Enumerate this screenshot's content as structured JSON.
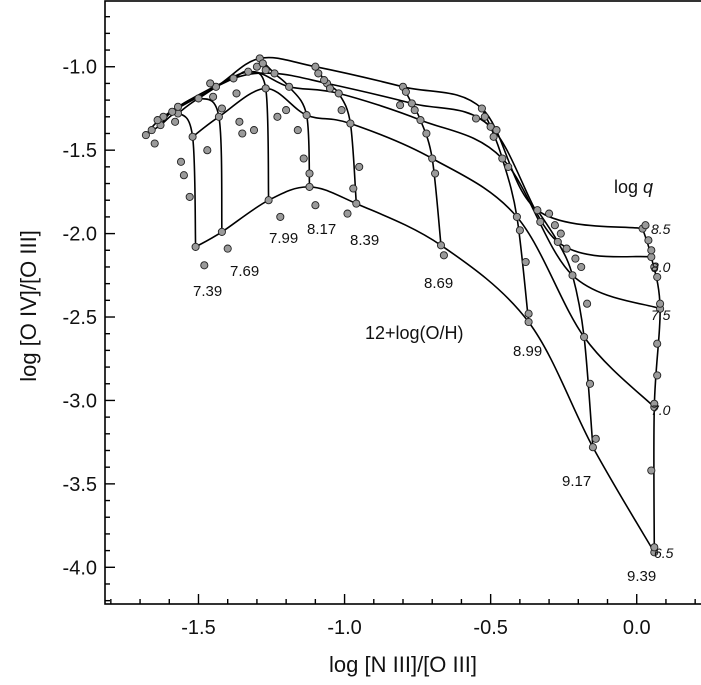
{
  "chart_data": {
    "type": "line",
    "title": "",
    "xlabel": "log [N III]/[O III]",
    "ylabel": "log [O IV]/[O III]",
    "xlim": [
      -1.82,
      0.22
    ],
    "ylim": [
      -4.22,
      -0.6
    ],
    "xticks": [
      -1.5,
      -1.0,
      -0.5,
      0.0
    ],
    "xtick_labels": [
      "-1.5",
      "-1.0",
      "-0.5",
      "0.0"
    ],
    "yticks": [
      -1.0,
      -1.5,
      -2.0,
      -2.5,
      -3.0,
      -3.5,
      -4.0
    ],
    "ytick_labels": [
      "-1.0",
      "-1.5",
      "-2.0",
      "-2.5",
      "-3.0",
      "-3.5",
      "-4.0"
    ],
    "grid": false,
    "logq_title": "log q",
    "logq_values": [
      "8.5",
      "8.0",
      "7.5",
      "7.0",
      "6.5"
    ],
    "metallicity_title": "12+log(O/H)",
    "metallicities": [
      "7.39",
      "7.69",
      "7.99",
      "8.17",
      "8.39",
      "8.69",
      "8.99",
      "9.17",
      "9.39"
    ],
    "grid_nodes": [
      [
        [
          -1.68,
          -1.41
        ],
        [
          -1.63,
          -1.35
        ],
        [
          -1.57,
          -1.28
        ],
        [
          -1.52,
          -1.42
        ],
        [
          -1.51,
          -2.08
        ]
      ],
      [
        [
          -1.62,
          -1.3
        ],
        [
          -1.57,
          -1.24
        ],
        [
          -1.5,
          -1.19
        ],
        [
          -1.43,
          -1.3
        ],
        [
          -1.42,
          -1.99
        ]
      ],
      [
        [
          -1.44,
          -1.12
        ],
        [
          -1.38,
          -1.07
        ],
        [
          -1.33,
          -1.03
        ],
        [
          -1.27,
          -1.13
        ],
        [
          -1.26,
          -1.8
        ]
      ],
      [
        [
          -1.29,
          -0.95
        ],
        [
          -1.24,
          -1.04
        ],
        [
          -1.19,
          -1.12
        ],
        [
          -1.13,
          -1.29
        ],
        [
          -1.12,
          -1.72
        ]
      ],
      [
        [
          -1.1,
          -1.0
        ],
        [
          -1.06,
          -1.1
        ],
        [
          -1.02,
          -1.16
        ],
        [
          -0.98,
          -1.34
        ],
        [
          -0.96,
          -1.82
        ]
      ],
      [
        [
          -0.8,
          -1.12
        ],
        [
          -0.77,
          -1.22
        ],
        [
          -0.74,
          -1.32
        ],
        [
          -0.7,
          -1.55
        ],
        [
          -0.67,
          -2.07
        ]
      ],
      [
        [
          -0.53,
          -1.25
        ],
        [
          -0.5,
          -1.36
        ],
        [
          -0.46,
          -1.55
        ],
        [
          -0.41,
          -1.9
        ],
        [
          -0.37,
          -2.53
        ]
      ],
      [
        [
          -0.34,
          -1.86
        ],
        [
          -0.27,
          -2.05
        ],
        [
          -0.22,
          -2.25
        ],
        [
          -0.18,
          -2.62
        ],
        [
          -0.15,
          -3.28
        ]
      ],
      [
        [
          0.02,
          -1.97
        ],
        [
          0.05,
          -2.14
        ],
        [
          0.08,
          -2.45
        ],
        [
          0.06,
          -3.04
        ],
        [
          0.06,
          -3.91
        ]
      ]
    ],
    "extra_points": [
      [
        -1.66,
        -1.38
      ],
      [
        -1.65,
        -1.46
      ],
      [
        -1.64,
        -1.32
      ],
      [
        -1.59,
        -1.27
      ],
      [
        -1.58,
        -1.33
      ],
      [
        -1.56,
        -1.57
      ],
      [
        -1.55,
        -1.65
      ],
      [
        -1.53,
        -1.78
      ],
      [
        -1.48,
        -2.19
      ],
      [
        -1.47,
        -1.5
      ],
      [
        -1.46,
        -1.1
      ],
      [
        -1.45,
        -1.18
      ],
      [
        -1.42,
        -1.25
      ],
      [
        -1.4,
        -2.09
      ],
      [
        -1.37,
        -1.16
      ],
      [
        -1.36,
        -1.33
      ],
      [
        -1.35,
        -1.4
      ],
      [
        -1.31,
        -1.38
      ],
      [
        -1.3,
        -1.0
      ],
      [
        -1.28,
        -0.98
      ],
      [
        -1.27,
        -1.02
      ],
      [
        -1.23,
        -1.3
      ],
      [
        -1.22,
        -1.9
      ],
      [
        -1.2,
        -1.26
      ],
      [
        -1.16,
        -1.38
      ],
      [
        -1.14,
        -1.55
      ],
      [
        -1.12,
        -1.64
      ],
      [
        -1.1,
        -1.83
      ],
      [
        -1.09,
        -1.04
      ],
      [
        -1.07,
        -1.08
      ],
      [
        -1.05,
        -1.13
      ],
      [
        -1.01,
        -1.26
      ],
      [
        -0.99,
        -1.88
      ],
      [
        -0.97,
        -1.73
      ],
      [
        -0.95,
        -1.6
      ],
      [
        -0.81,
        -1.23
      ],
      [
        -0.79,
        -1.15
      ],
      [
        -0.76,
        -1.26
      ],
      [
        -0.72,
        -1.4
      ],
      [
        -0.69,
        -1.64
      ],
      [
        -0.66,
        -2.13
      ],
      [
        -0.55,
        -1.31
      ],
      [
        -0.52,
        -1.3
      ],
      [
        -0.49,
        -1.42
      ],
      [
        -0.48,
        -1.38
      ],
      [
        -0.44,
        -1.6
      ],
      [
        -0.4,
        -1.98
      ],
      [
        -0.38,
        -2.17
      ],
      [
        -0.37,
        -2.48
      ],
      [
        -0.33,
        -1.93
      ],
      [
        -0.3,
        -1.88
      ],
      [
        -0.28,
        -1.95
      ],
      [
        -0.26,
        -2.0
      ],
      [
        -0.24,
        -2.09
      ],
      [
        -0.21,
        -2.15
      ],
      [
        -0.19,
        -2.2
      ],
      [
        -0.17,
        -2.42
      ],
      [
        -0.16,
        -2.9
      ],
      [
        -0.14,
        -3.23
      ],
      [
        0.03,
        -1.95
      ],
      [
        0.04,
        -2.04
      ],
      [
        0.05,
        -2.1
      ],
      [
        0.06,
        -2.2
      ],
      [
        0.07,
        -2.26
      ],
      [
        0.08,
        -2.42
      ],
      [
        0.07,
        -2.66
      ],
      [
        0.07,
        -2.85
      ],
      [
        0.06,
        -3.02
      ],
      [
        0.05,
        -3.42
      ],
      [
        0.06,
        -3.88
      ]
    ],
    "series": [
      {
        "name": "8.5",
        "points": [
          [
            -1.68,
            -1.41
          ],
          [
            -1.62,
            -1.3
          ],
          [
            -1.44,
            -1.12
          ],
          [
            -1.29,
            -0.95
          ],
          [
            -1.1,
            -1.0
          ],
          [
            -0.8,
            -1.12
          ],
          [
            -0.53,
            -1.25
          ],
          [
            -0.34,
            -1.86
          ],
          [
            0.02,
            -1.97
          ]
        ]
      },
      {
        "name": "8.0",
        "points": [
          [
            -1.63,
            -1.35
          ],
          [
            -1.57,
            -1.24
          ],
          [
            -1.38,
            -1.07
          ],
          [
            -1.24,
            -1.04
          ],
          [
            -1.06,
            -1.1
          ],
          [
            -0.77,
            -1.22
          ],
          [
            -0.5,
            -1.36
          ],
          [
            -0.27,
            -2.05
          ],
          [
            0.05,
            -2.14
          ]
        ]
      },
      {
        "name": "7.5",
        "points": [
          [
            -1.57,
            -1.28
          ],
          [
            -1.5,
            -1.19
          ],
          [
            -1.33,
            -1.03
          ],
          [
            -1.19,
            -1.12
          ],
          [
            -1.02,
            -1.16
          ],
          [
            -0.74,
            -1.32
          ],
          [
            -0.46,
            -1.55
          ],
          [
            -0.22,
            -2.25
          ],
          [
            0.08,
            -2.45
          ]
        ]
      },
      {
        "name": "7.0",
        "points": [
          [
            -1.52,
            -1.42
          ],
          [
            -1.43,
            -1.3
          ],
          [
            -1.27,
            -1.13
          ],
          [
            -1.13,
            -1.29
          ],
          [
            -0.98,
            -1.34
          ],
          [
            -0.7,
            -1.55
          ],
          [
            -0.41,
            -1.9
          ],
          [
            -0.18,
            -2.62
          ],
          [
            0.06,
            -3.04
          ]
        ]
      },
      {
        "name": "6.5",
        "points": [
          [
            -1.51,
            -2.08
          ],
          [
            -1.42,
            -1.99
          ],
          [
            -1.26,
            -1.8
          ],
          [
            -1.12,
            -1.72
          ],
          [
            -0.96,
            -1.82
          ],
          [
            -0.67,
            -2.07
          ],
          [
            -0.37,
            -2.53
          ],
          [
            -0.15,
            -3.28
          ],
          [
            0.06,
            -3.91
          ]
        ]
      }
    ]
  }
}
